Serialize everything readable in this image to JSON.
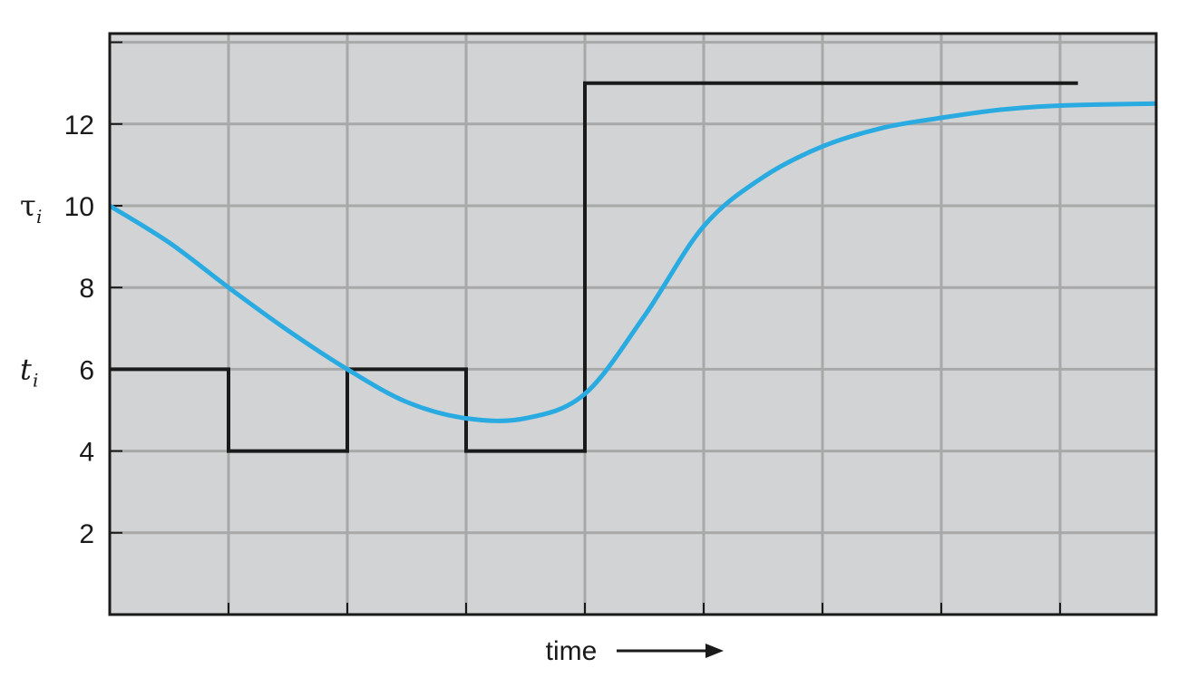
{
  "chart_data": {
    "type": "line",
    "xlabel": "time",
    "y_ticks": [
      2,
      4,
      6,
      8,
      10,
      12
    ],
    "ylim": [
      0,
      14.2
    ],
    "xlim": [
      0,
      8.8
    ],
    "grid": true,
    "series": [
      {
        "name": "t",
        "name_subscript": "i",
        "color": "#1a1a1a",
        "step": true,
        "label_at_y": 6,
        "points": [
          [
            0,
            6
          ],
          [
            1,
            6
          ],
          [
            1,
            4
          ],
          [
            2,
            4
          ],
          [
            2,
            6
          ],
          [
            3,
            6
          ],
          [
            3,
            4
          ],
          [
            4,
            4
          ],
          [
            4,
            13
          ],
          [
            8.15,
            13
          ]
        ]
      },
      {
        "name": "τ",
        "name_subscript": "i",
        "color": "#29abe2",
        "step": false,
        "label_at_y": 10,
        "points": [
          [
            0,
            10
          ],
          [
            0.5,
            9.1
          ],
          [
            1,
            8
          ],
          [
            1.5,
            6.95
          ],
          [
            2,
            6
          ],
          [
            2.5,
            5.2
          ],
          [
            3,
            4.8
          ],
          [
            3.5,
            4.8
          ],
          [
            4,
            5.4
          ],
          [
            4.5,
            7.3
          ],
          [
            5,
            9.5
          ],
          [
            5.5,
            10.7
          ],
          [
            6,
            11.45
          ],
          [
            6.5,
            11.9
          ],
          [
            7,
            12.15
          ],
          [
            7.5,
            12.35
          ],
          [
            8,
            12.45
          ],
          [
            8.8,
            12.5
          ]
        ]
      }
    ],
    "colors": {
      "grid": "#a8a8a8",
      "plot_bg": "#d1d3d4",
      "axis": "#1a1a1a"
    }
  }
}
